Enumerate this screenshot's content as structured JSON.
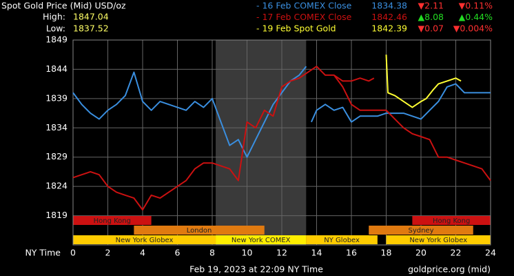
{
  "chart_data": {
    "type": "line",
    "title": "Spot Gold Price (Mid) USD/oz",
    "high_label": "High:",
    "high": 1847.04,
    "low_label": "Low:",
    "low": 1837.52,
    "xlabel": "NY Time",
    "timestamp": "Feb 19, 2023 at 22:09 NY Time",
    "source": "goldprice.org (mid)",
    "xlim": [
      0,
      24
    ],
    "xticks": [
      0,
      2,
      4,
      6,
      8,
      10,
      12,
      14,
      16,
      18,
      20,
      22,
      24
    ],
    "ylim": [
      1814,
      1849
    ],
    "yticks": [
      1819,
      1824,
      1829,
      1834,
      1839,
      1844,
      1849
    ],
    "grid": true,
    "sessions": [
      {
        "label": "Hong Kong",
        "start": 0,
        "end": 4.5,
        "row": 0,
        "color": "#cc1111"
      },
      {
        "label": "Hong Kong",
        "start": 19.5,
        "end": 24,
        "row": 0,
        "color": "#cc1111"
      },
      {
        "label": "London",
        "start": 3.5,
        "end": 11,
        "row": 1,
        "color": "#e07a10"
      },
      {
        "label": "Sydney",
        "start": 17,
        "end": 23,
        "row": 1,
        "color": "#e07a10"
      },
      {
        "label": "New York Globex",
        "start": 0,
        "end": 8.2,
        "row": 2,
        "color": "#ffcc00"
      },
      {
        "label": "New York COMEX",
        "start": 8.2,
        "end": 13.4,
        "row": 2,
        "color": "#ffee00",
        "shade": true
      },
      {
        "label": "NY Globex",
        "start": 13.4,
        "end": 17.5,
        "row": 2,
        "color": "#ffcc00"
      },
      {
        "label": "New York Globex",
        "start": 18,
        "end": 24,
        "row": 2,
        "color": "#ffcc00"
      }
    ],
    "series": [
      {
        "name": "- 16 Feb COMEX Close",
        "color": "#3a8fe0",
        "close": 1834.38,
        "change": "▼2.11",
        "change_pct": "▼0.11%",
        "change_color": "#ff3030",
        "x": [
          0,
          0.5,
          1,
          1.5,
          2,
          2.5,
          3,
          3.5,
          4,
          4.5,
          5,
          5.5,
          6,
          6.5,
          7,
          7.5,
          8,
          8.5,
          9,
          9.5,
          10,
          10.5,
          11,
          11.5,
          12,
          12.5,
          13,
          13.4,
          null,
          13.7,
          14,
          14.5,
          15,
          15.5,
          16,
          16.5,
          17,
          17.5,
          18,
          18.5,
          19,
          19.5,
          20,
          20.5,
          21,
          21.5,
          22,
          22.5,
          23,
          23.5,
          24
        ],
        "values": [
          1840,
          1838,
          1836.5,
          1835.5,
          1837,
          1838,
          1839.5,
          1843.5,
          1838.5,
          1837,
          1838.5,
          1838,
          1837.5,
          1837,
          1838.5,
          1837.5,
          1839,
          1835,
          1831,
          1832,
          1829,
          1832,
          1835,
          1838,
          1840,
          1842,
          1843,
          1844.5,
          null,
          1835,
          1837,
          1838,
          1837,
          1837.5,
          1835,
          1836,
          1836,
          1836,
          1836.5,
          1836.5,
          1836.5,
          1836,
          1835.5,
          1837,
          1838.5,
          1841,
          1841.5,
          1840,
          1840,
          1840,
          1840
        ]
      },
      {
        "name": "- 17 Feb COMEX Close",
        "color": "#cc1111",
        "close": 1842.46,
        "change": "▲8.08",
        "change_pct": "▲0.44%",
        "change_color": "#22dd22",
        "x": [
          0,
          0.5,
          1,
          1.5,
          2,
          2.5,
          3,
          3.5,
          4,
          4.5,
          5,
          5.5,
          6,
          6.5,
          7,
          7.5,
          8,
          8.5,
          9,
          9.5,
          10,
          10.5,
          11,
          11.5,
          12,
          12.5,
          13,
          13.5,
          14,
          14.5,
          15,
          15.5,
          16,
          16.5,
          17,
          17.3,
          null,
          15,
          15.5,
          16,
          16.5,
          17,
          17.5,
          18,
          18.5,
          19,
          19.5,
          20,
          20.5,
          21,
          21.5,
          22,
          22.5,
          23,
          23.5,
          24
        ],
        "values": [
          1825.5,
          1826,
          1826.5,
          1826,
          1824,
          1823,
          1822.5,
          1822,
          1820,
          1822.5,
          1822,
          1823,
          1824,
          1825,
          1827,
          1828,
          1828,
          1827.5,
          1827,
          1825,
          1835,
          1834,
          1837,
          1836,
          1841,
          1842,
          1842.5,
          1843.5,
          1844.5,
          1843,
          1843,
          1842,
          1842,
          1842.5,
          1842,
          1842.5,
          null,
          1843,
          1841,
          1838,
          1837,
          1837,
          1837,
          1837,
          1835.5,
          1834,
          1833,
          1832.5,
          1832,
          1829,
          1829,
          1828.5,
          1828,
          1827.5,
          1827,
          1825
        ]
      },
      {
        "name": "- 19 Feb Spot Gold",
        "color": "#ffff33",
        "close": 1842.39,
        "change": "▼0.07",
        "change_pct": "▼0.004%",
        "change_color": "#ff3030",
        "x": [
          18,
          18.1,
          18.5,
          19,
          19.5,
          20,
          20.3,
          20.7,
          21,
          21.5,
          22,
          22.3
        ],
        "values": [
          1846.5,
          1840,
          1839.5,
          1838.5,
          1837.5,
          1838.5,
          1839,
          1840.5,
          1841.5,
          1842,
          1842.5,
          1842
        ]
      }
    ]
  }
}
